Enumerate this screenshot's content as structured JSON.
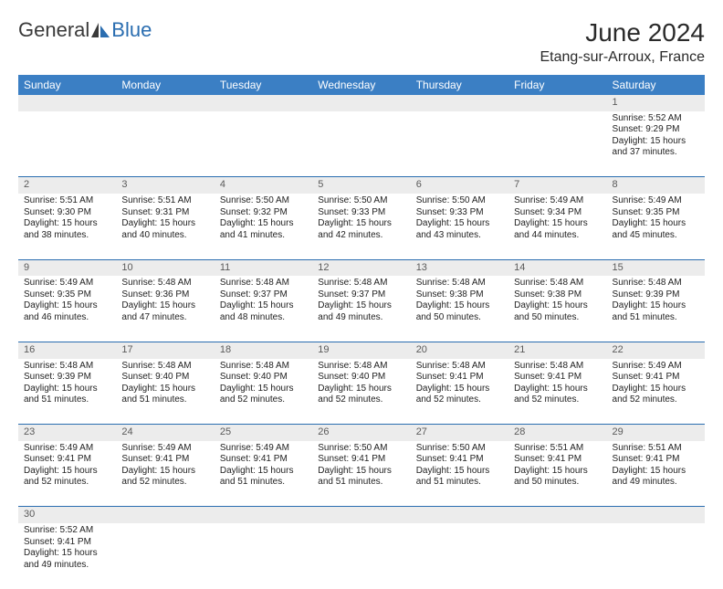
{
  "brand": {
    "general": "General",
    "blue": "Blue"
  },
  "title": "June 2024",
  "location": "Etang-sur-Arroux, France",
  "colors": {
    "header_bg": "#3b7fc4",
    "header_text": "#ffffff",
    "daynum_bg": "#ececec",
    "rule": "#2a6db0",
    "logo_gray": "#3a3a3a",
    "logo_blue": "#2a6db0"
  },
  "weekdays": [
    "Sunday",
    "Monday",
    "Tuesday",
    "Wednesday",
    "Thursday",
    "Friday",
    "Saturday"
  ],
  "weeks": [
    [
      null,
      null,
      null,
      null,
      null,
      null,
      {
        "n": "1",
        "sr": "Sunrise: 5:52 AM",
        "ss": "Sunset: 9:29 PM",
        "d1": "Daylight: 15 hours",
        "d2": "and 37 minutes."
      }
    ],
    [
      {
        "n": "2",
        "sr": "Sunrise: 5:51 AM",
        "ss": "Sunset: 9:30 PM",
        "d1": "Daylight: 15 hours",
        "d2": "and 38 minutes."
      },
      {
        "n": "3",
        "sr": "Sunrise: 5:51 AM",
        "ss": "Sunset: 9:31 PM",
        "d1": "Daylight: 15 hours",
        "d2": "and 40 minutes."
      },
      {
        "n": "4",
        "sr": "Sunrise: 5:50 AM",
        "ss": "Sunset: 9:32 PM",
        "d1": "Daylight: 15 hours",
        "d2": "and 41 minutes."
      },
      {
        "n": "5",
        "sr": "Sunrise: 5:50 AM",
        "ss": "Sunset: 9:33 PM",
        "d1": "Daylight: 15 hours",
        "d2": "and 42 minutes."
      },
      {
        "n": "6",
        "sr": "Sunrise: 5:50 AM",
        "ss": "Sunset: 9:33 PM",
        "d1": "Daylight: 15 hours",
        "d2": "and 43 minutes."
      },
      {
        "n": "7",
        "sr": "Sunrise: 5:49 AM",
        "ss": "Sunset: 9:34 PM",
        "d1": "Daylight: 15 hours",
        "d2": "and 44 minutes."
      },
      {
        "n": "8",
        "sr": "Sunrise: 5:49 AM",
        "ss": "Sunset: 9:35 PM",
        "d1": "Daylight: 15 hours",
        "d2": "and 45 minutes."
      }
    ],
    [
      {
        "n": "9",
        "sr": "Sunrise: 5:49 AM",
        "ss": "Sunset: 9:35 PM",
        "d1": "Daylight: 15 hours",
        "d2": "and 46 minutes."
      },
      {
        "n": "10",
        "sr": "Sunrise: 5:48 AM",
        "ss": "Sunset: 9:36 PM",
        "d1": "Daylight: 15 hours",
        "d2": "and 47 minutes."
      },
      {
        "n": "11",
        "sr": "Sunrise: 5:48 AM",
        "ss": "Sunset: 9:37 PM",
        "d1": "Daylight: 15 hours",
        "d2": "and 48 minutes."
      },
      {
        "n": "12",
        "sr": "Sunrise: 5:48 AM",
        "ss": "Sunset: 9:37 PM",
        "d1": "Daylight: 15 hours",
        "d2": "and 49 minutes."
      },
      {
        "n": "13",
        "sr": "Sunrise: 5:48 AM",
        "ss": "Sunset: 9:38 PM",
        "d1": "Daylight: 15 hours",
        "d2": "and 50 minutes."
      },
      {
        "n": "14",
        "sr": "Sunrise: 5:48 AM",
        "ss": "Sunset: 9:38 PM",
        "d1": "Daylight: 15 hours",
        "d2": "and 50 minutes."
      },
      {
        "n": "15",
        "sr": "Sunrise: 5:48 AM",
        "ss": "Sunset: 9:39 PM",
        "d1": "Daylight: 15 hours",
        "d2": "and 51 minutes."
      }
    ],
    [
      {
        "n": "16",
        "sr": "Sunrise: 5:48 AM",
        "ss": "Sunset: 9:39 PM",
        "d1": "Daylight: 15 hours",
        "d2": "and 51 minutes."
      },
      {
        "n": "17",
        "sr": "Sunrise: 5:48 AM",
        "ss": "Sunset: 9:40 PM",
        "d1": "Daylight: 15 hours",
        "d2": "and 51 minutes."
      },
      {
        "n": "18",
        "sr": "Sunrise: 5:48 AM",
        "ss": "Sunset: 9:40 PM",
        "d1": "Daylight: 15 hours",
        "d2": "and 52 minutes."
      },
      {
        "n": "19",
        "sr": "Sunrise: 5:48 AM",
        "ss": "Sunset: 9:40 PM",
        "d1": "Daylight: 15 hours",
        "d2": "and 52 minutes."
      },
      {
        "n": "20",
        "sr": "Sunrise: 5:48 AM",
        "ss": "Sunset: 9:41 PM",
        "d1": "Daylight: 15 hours",
        "d2": "and 52 minutes."
      },
      {
        "n": "21",
        "sr": "Sunrise: 5:48 AM",
        "ss": "Sunset: 9:41 PM",
        "d1": "Daylight: 15 hours",
        "d2": "and 52 minutes."
      },
      {
        "n": "22",
        "sr": "Sunrise: 5:49 AM",
        "ss": "Sunset: 9:41 PM",
        "d1": "Daylight: 15 hours",
        "d2": "and 52 minutes."
      }
    ],
    [
      {
        "n": "23",
        "sr": "Sunrise: 5:49 AM",
        "ss": "Sunset: 9:41 PM",
        "d1": "Daylight: 15 hours",
        "d2": "and 52 minutes."
      },
      {
        "n": "24",
        "sr": "Sunrise: 5:49 AM",
        "ss": "Sunset: 9:41 PM",
        "d1": "Daylight: 15 hours",
        "d2": "and 52 minutes."
      },
      {
        "n": "25",
        "sr": "Sunrise: 5:49 AM",
        "ss": "Sunset: 9:41 PM",
        "d1": "Daylight: 15 hours",
        "d2": "and 51 minutes."
      },
      {
        "n": "26",
        "sr": "Sunrise: 5:50 AM",
        "ss": "Sunset: 9:41 PM",
        "d1": "Daylight: 15 hours",
        "d2": "and 51 minutes."
      },
      {
        "n": "27",
        "sr": "Sunrise: 5:50 AM",
        "ss": "Sunset: 9:41 PM",
        "d1": "Daylight: 15 hours",
        "d2": "and 51 minutes."
      },
      {
        "n": "28",
        "sr": "Sunrise: 5:51 AM",
        "ss": "Sunset: 9:41 PM",
        "d1": "Daylight: 15 hours",
        "d2": "and 50 minutes."
      },
      {
        "n": "29",
        "sr": "Sunrise: 5:51 AM",
        "ss": "Sunset: 9:41 PM",
        "d1": "Daylight: 15 hours",
        "d2": "and 49 minutes."
      }
    ],
    [
      {
        "n": "30",
        "sr": "Sunrise: 5:52 AM",
        "ss": "Sunset: 9:41 PM",
        "d1": "Daylight: 15 hours",
        "d2": "and 49 minutes."
      },
      null,
      null,
      null,
      null,
      null,
      null
    ]
  ]
}
